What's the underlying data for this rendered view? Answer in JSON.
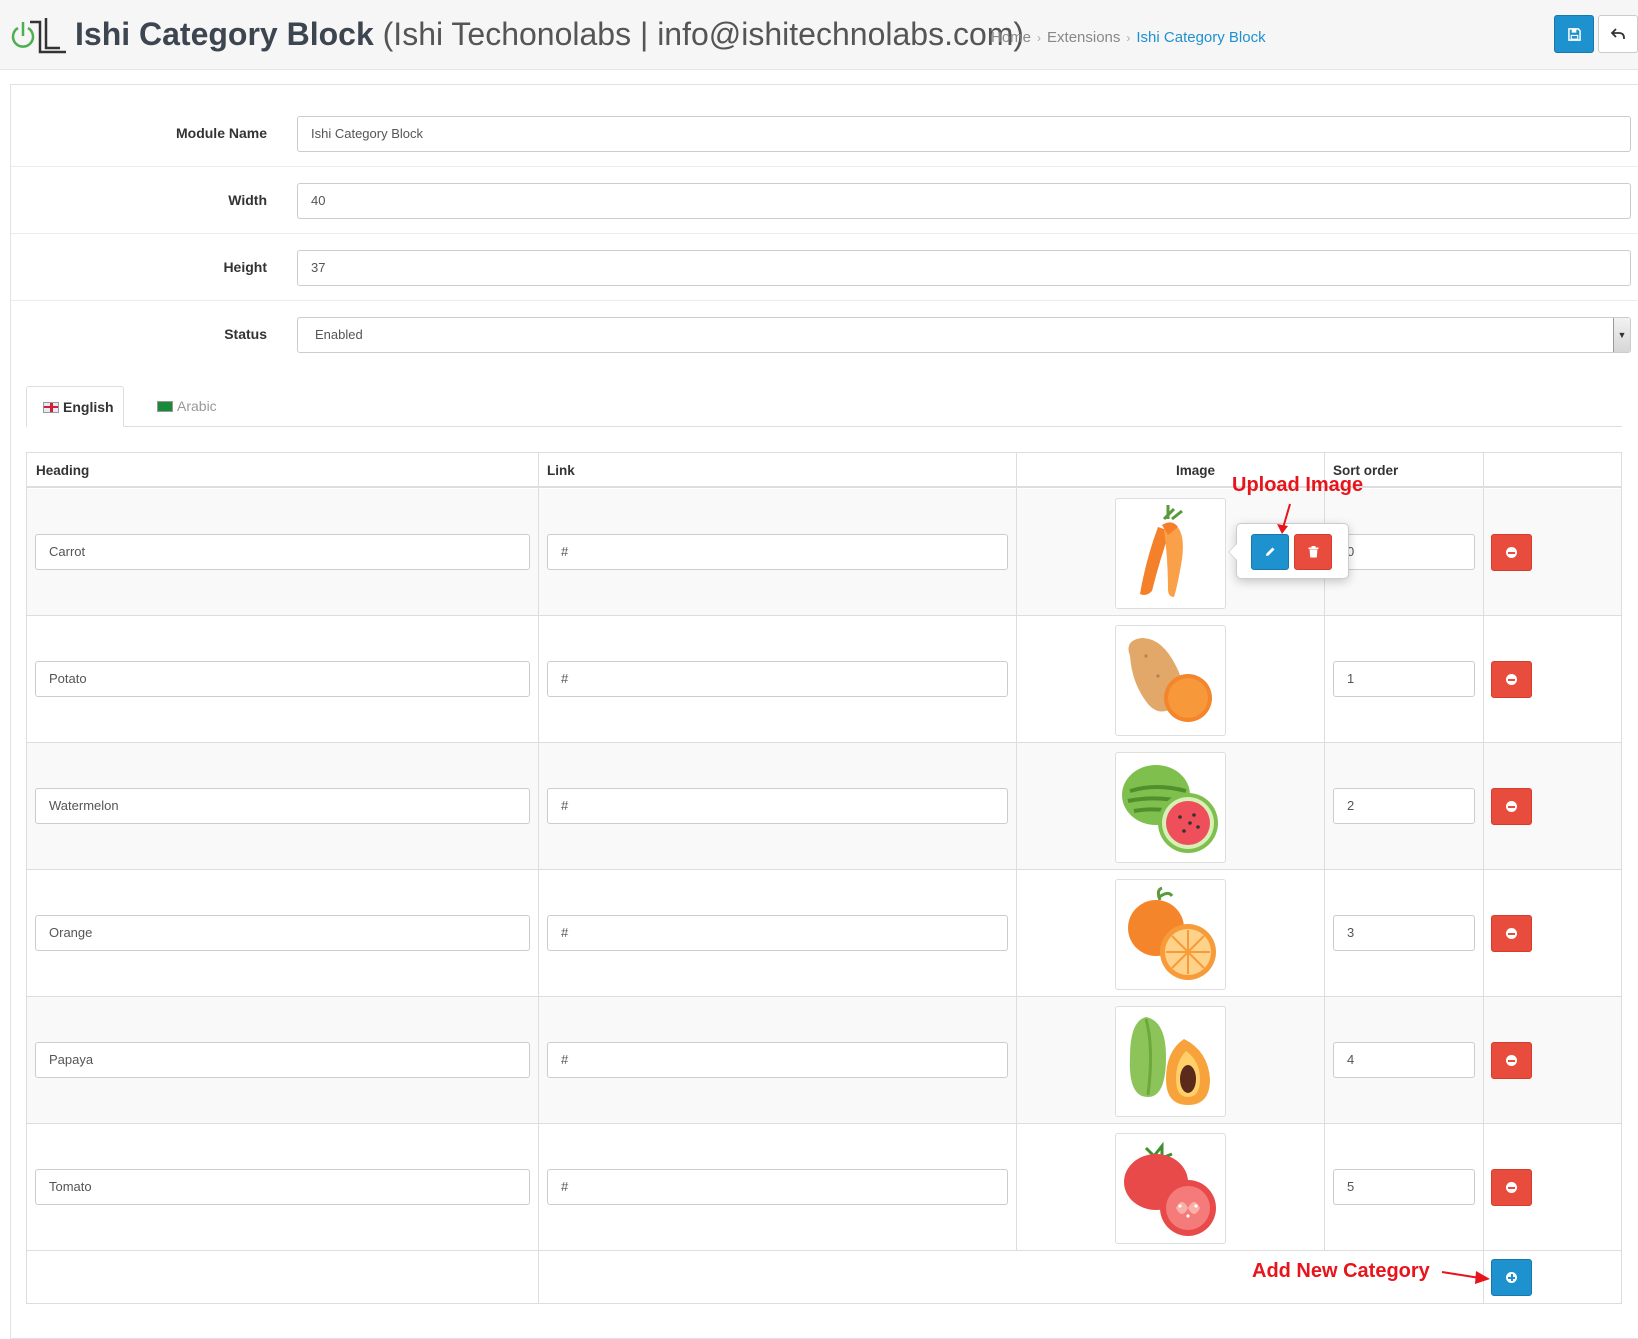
{
  "header": {
    "title_main": "Ishi Category Block",
    "title_sub": "(Ishi Techonolabs | info@ishitechnolabs.com)",
    "breadcrumb": [
      "Home",
      "Extensions",
      "Ishi Category Block"
    ]
  },
  "form": {
    "module_name_label": "Module Name",
    "module_name_value": "Ishi Category Block",
    "width_label": "Width",
    "width_value": "40",
    "height_label": "Height",
    "height_value": "37",
    "status_label": "Status",
    "status_value": "Enabled"
  },
  "tabs": [
    {
      "label": "English",
      "flag": "gb-flag-icon",
      "active": true
    },
    {
      "label": "Arabic",
      "flag": "sa-flag-icon",
      "active": false
    }
  ],
  "table": {
    "headers": {
      "heading": "Heading",
      "link": "Link",
      "image": "Image",
      "sort_order": "Sort order"
    },
    "rows": [
      {
        "heading": "Carrot",
        "link": "#",
        "image": "carrot-image",
        "sort_order": "0"
      },
      {
        "heading": "Potato",
        "link": "#",
        "image": "potato-image",
        "sort_order": "1"
      },
      {
        "heading": "Watermelon",
        "link": "#",
        "image": "watermelon-image",
        "sort_order": "2"
      },
      {
        "heading": "Orange",
        "link": "#",
        "image": "orange-image",
        "sort_order": "3"
      },
      {
        "heading": "Papaya",
        "link": "#",
        "image": "papaya-image",
        "sort_order": "4"
      },
      {
        "heading": "Tomato",
        "link": "#",
        "image": "tomato-image",
        "sort_order": "5"
      }
    ]
  },
  "annotations": {
    "upload_image": "Upload Image",
    "add_new_category": "Add New Category"
  },
  "colors": {
    "primary": "#1e91cf",
    "danger": "#e74c3c",
    "annotation": "#e8141b"
  }
}
